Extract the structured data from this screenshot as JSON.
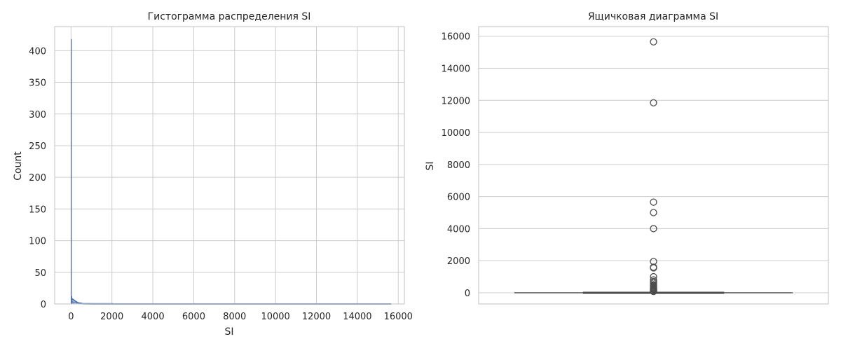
{
  "chart_data": [
    {
      "type": "histogram",
      "title": "Гистограмма распределения SI",
      "xlabel": "SI",
      "ylabel": "Count",
      "xlim": [
        -800,
        16300
      ],
      "ylim": [
        0,
        438
      ],
      "xticks": [
        0,
        2000,
        4000,
        6000,
        8000,
        10000,
        12000,
        14000,
        16000
      ],
      "yticks": [
        0,
        50,
        100,
        150,
        200,
        250,
        300,
        350,
        400
      ],
      "grid": true,
      "bar_color": "#4c72b0",
      "bins": [
        {
          "x0": 0,
          "x1": 16,
          "count": 418
        },
        {
          "x0": 16,
          "x1": 32,
          "count": 12
        },
        {
          "x0": 32,
          "x1": 64,
          "count": 6
        },
        {
          "x0": 64,
          "x1": 128,
          "count": 4
        },
        {
          "x0": 128,
          "x1": 256,
          "count": 3
        },
        {
          "x0": 256,
          "x1": 512,
          "count": 2
        },
        {
          "x0": 512,
          "x1": 1024,
          "count": 1
        },
        {
          "x0": 1024,
          "x1": 2048,
          "count": 1
        }
      ],
      "kde": {
        "x": [
          0,
          50,
          100,
          200,
          300,
          400,
          500,
          600,
          800,
          1000,
          1500,
          2000,
          4000,
          8000,
          12000,
          15650
        ],
        "y": [
          9,
          8,
          7,
          4.5,
          2.5,
          1.2,
          0.6,
          0.3,
          0.1,
          0.05,
          0.02,
          0.01,
          0.005,
          0.002,
          0.001,
          0.001
        ]
      }
    },
    {
      "type": "box",
      "title": "Ящичковая диаграмма SI",
      "ylabel": "SI",
      "ylim": [
        -700,
        16600
      ],
      "yticks": [
        0,
        2000,
        4000,
        6000,
        8000,
        10000,
        12000,
        14000,
        16000
      ],
      "grid": true,
      "box_color": "#4c72b0",
      "stats": {
        "min": 0,
        "q1": 2,
        "median": 8,
        "q3": 30,
        "max": 70
      },
      "outliers": [
        15650,
        11850,
        5650,
        5000,
        4000,
        1950,
        1600,
        1550,
        1000,
        800,
        700,
        600,
        500,
        450,
        400,
        350,
        300,
        280,
        250,
        220,
        200,
        180,
        160,
        140,
        120,
        100,
        90,
        80
      ]
    }
  ]
}
